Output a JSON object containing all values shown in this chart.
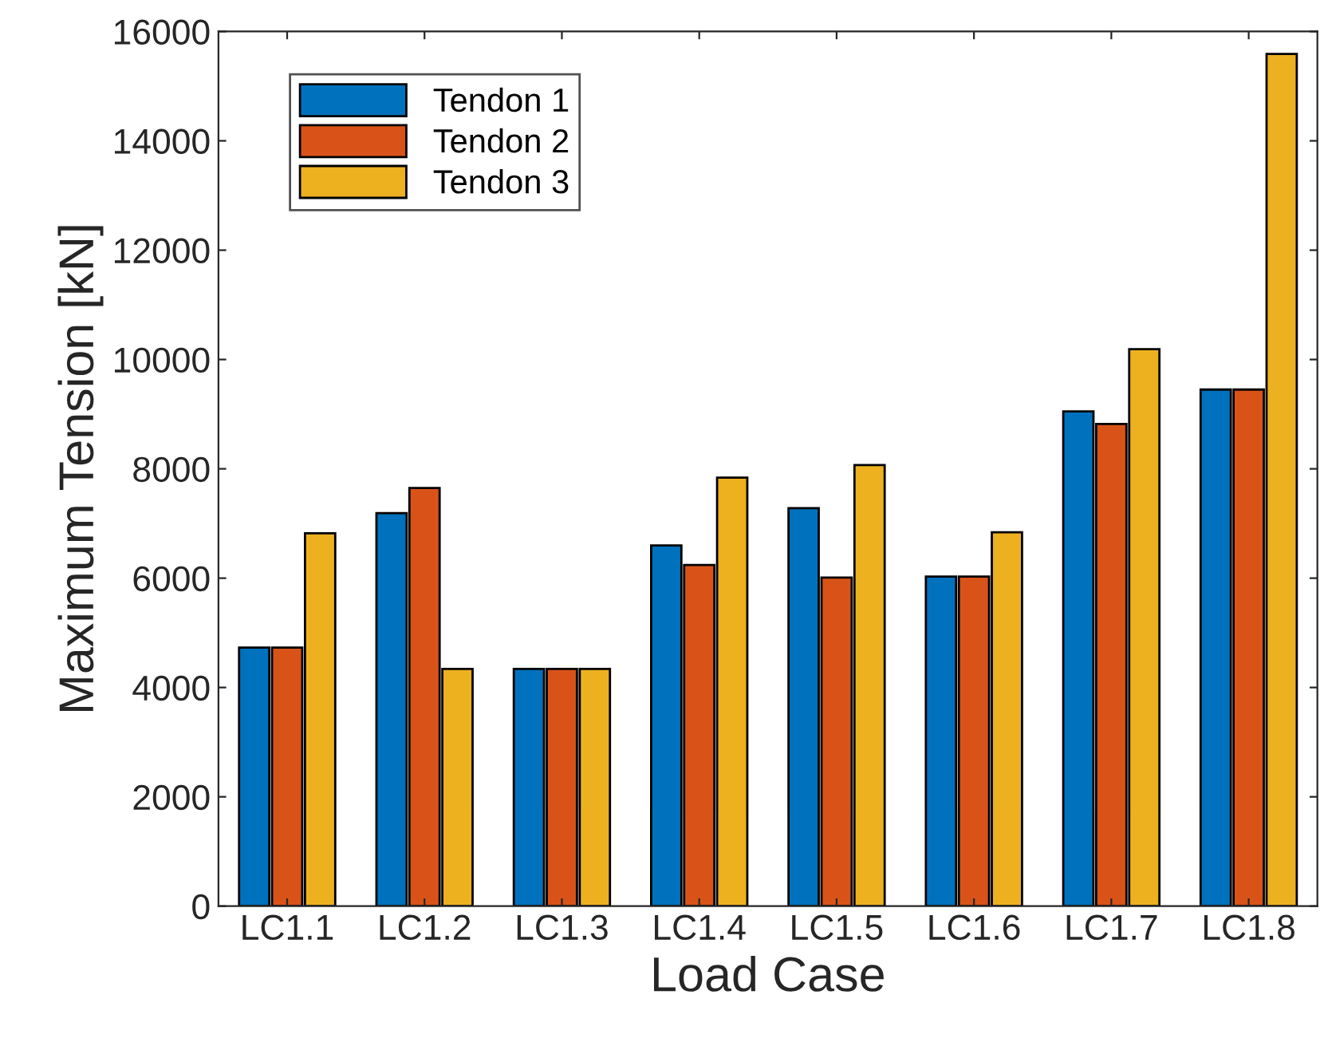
{
  "chart_data": {
    "type": "bar",
    "xlabel": "Load Case",
    "ylabel": "Maximum Tension [kN]",
    "categories": [
      "LC1.1",
      "LC1.2",
      "LC1.3",
      "LC1.4",
      "LC1.5",
      "LC1.6",
      "LC1.7",
      "LC1.8"
    ],
    "series": [
      {
        "name": "Tendon 1",
        "color": "#0072bd",
        "values": [
          4730,
          7190,
          4340,
          6600,
          7280,
          6030,
          9050,
          9450
        ]
      },
      {
        "name": "Tendon 2",
        "color": "#d95319",
        "values": [
          4730,
          7650,
          4340,
          6240,
          6010,
          6030,
          8820,
          9450
        ]
      },
      {
        "name": "Tendon 3",
        "color": "#edb120",
        "values": [
          6820,
          4340,
          4340,
          7840,
          8070,
          6840,
          10190,
          15590
        ]
      }
    ],
    "ylim": [
      0,
      16000
    ],
    "yticks": [
      0,
      2000,
      4000,
      6000,
      8000,
      10000,
      12000,
      14000,
      16000
    ],
    "grid": false,
    "legend": "top left"
  }
}
